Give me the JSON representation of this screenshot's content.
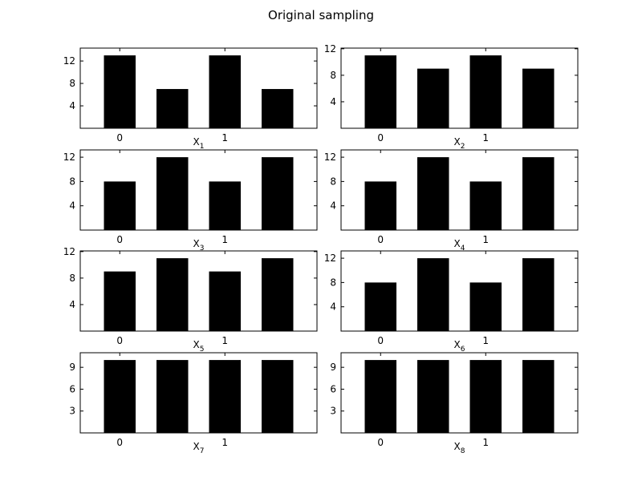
{
  "title": "Original sampling",
  "chart_data": [
    {
      "type": "bar",
      "xlabel": "X",
      "xlabel_sub": "1",
      "categories": [
        "0",
        "",
        "1",
        ""
      ],
      "values": [
        13,
        7,
        13,
        7
      ],
      "ylim": [
        0,
        14.3
      ],
      "yticks": [
        4,
        8,
        12
      ]
    },
    {
      "type": "bar",
      "xlabel": "X",
      "xlabel_sub": "2",
      "categories": [
        "0",
        "",
        "1",
        ""
      ],
      "values": [
        11,
        9,
        11,
        9
      ],
      "ylim": [
        0,
        12.1
      ],
      "yticks": [
        4,
        8,
        12
      ]
    },
    {
      "type": "bar",
      "xlabel": "X",
      "xlabel_sub": "3",
      "categories": [
        "0",
        "",
        "1",
        ""
      ],
      "values": [
        8,
        12,
        8,
        12
      ],
      "ylim": [
        0,
        13.2
      ],
      "yticks": [
        4,
        8,
        12
      ]
    },
    {
      "type": "bar",
      "xlabel": "X",
      "xlabel_sub": "4",
      "categories": [
        "0",
        "",
        "1",
        ""
      ],
      "values": [
        8,
        12,
        8,
        12
      ],
      "ylim": [
        0,
        13.2
      ],
      "yticks": [
        4,
        8,
        12
      ]
    },
    {
      "type": "bar",
      "xlabel": "X",
      "xlabel_sub": "5",
      "categories": [
        "0",
        "",
        "1",
        ""
      ],
      "values": [
        9,
        11,
        9,
        11
      ],
      "ylim": [
        0,
        12.1
      ],
      "yticks": [
        4,
        8,
        12
      ]
    },
    {
      "type": "bar",
      "xlabel": "X",
      "xlabel_sub": "6",
      "categories": [
        "0",
        "",
        "1",
        ""
      ],
      "values": [
        8,
        12,
        8,
        12
      ],
      "ylim": [
        0,
        13.2
      ],
      "yticks": [
        4,
        8,
        12
      ]
    },
    {
      "type": "bar",
      "xlabel": "X",
      "xlabel_sub": "7",
      "categories": [
        "0",
        "",
        "1",
        ""
      ],
      "values": [
        10,
        10,
        10,
        10
      ],
      "ylim": [
        0,
        11
      ],
      "yticks": [
        3,
        6,
        9
      ]
    },
    {
      "type": "bar",
      "xlabel": "X",
      "xlabel_sub": "8",
      "categories": [
        "0",
        "",
        "1",
        ""
      ],
      "values": [
        10,
        10,
        10,
        10
      ],
      "ylim": [
        0,
        11
      ],
      "yticks": [
        3,
        6,
        9
      ]
    }
  ]
}
